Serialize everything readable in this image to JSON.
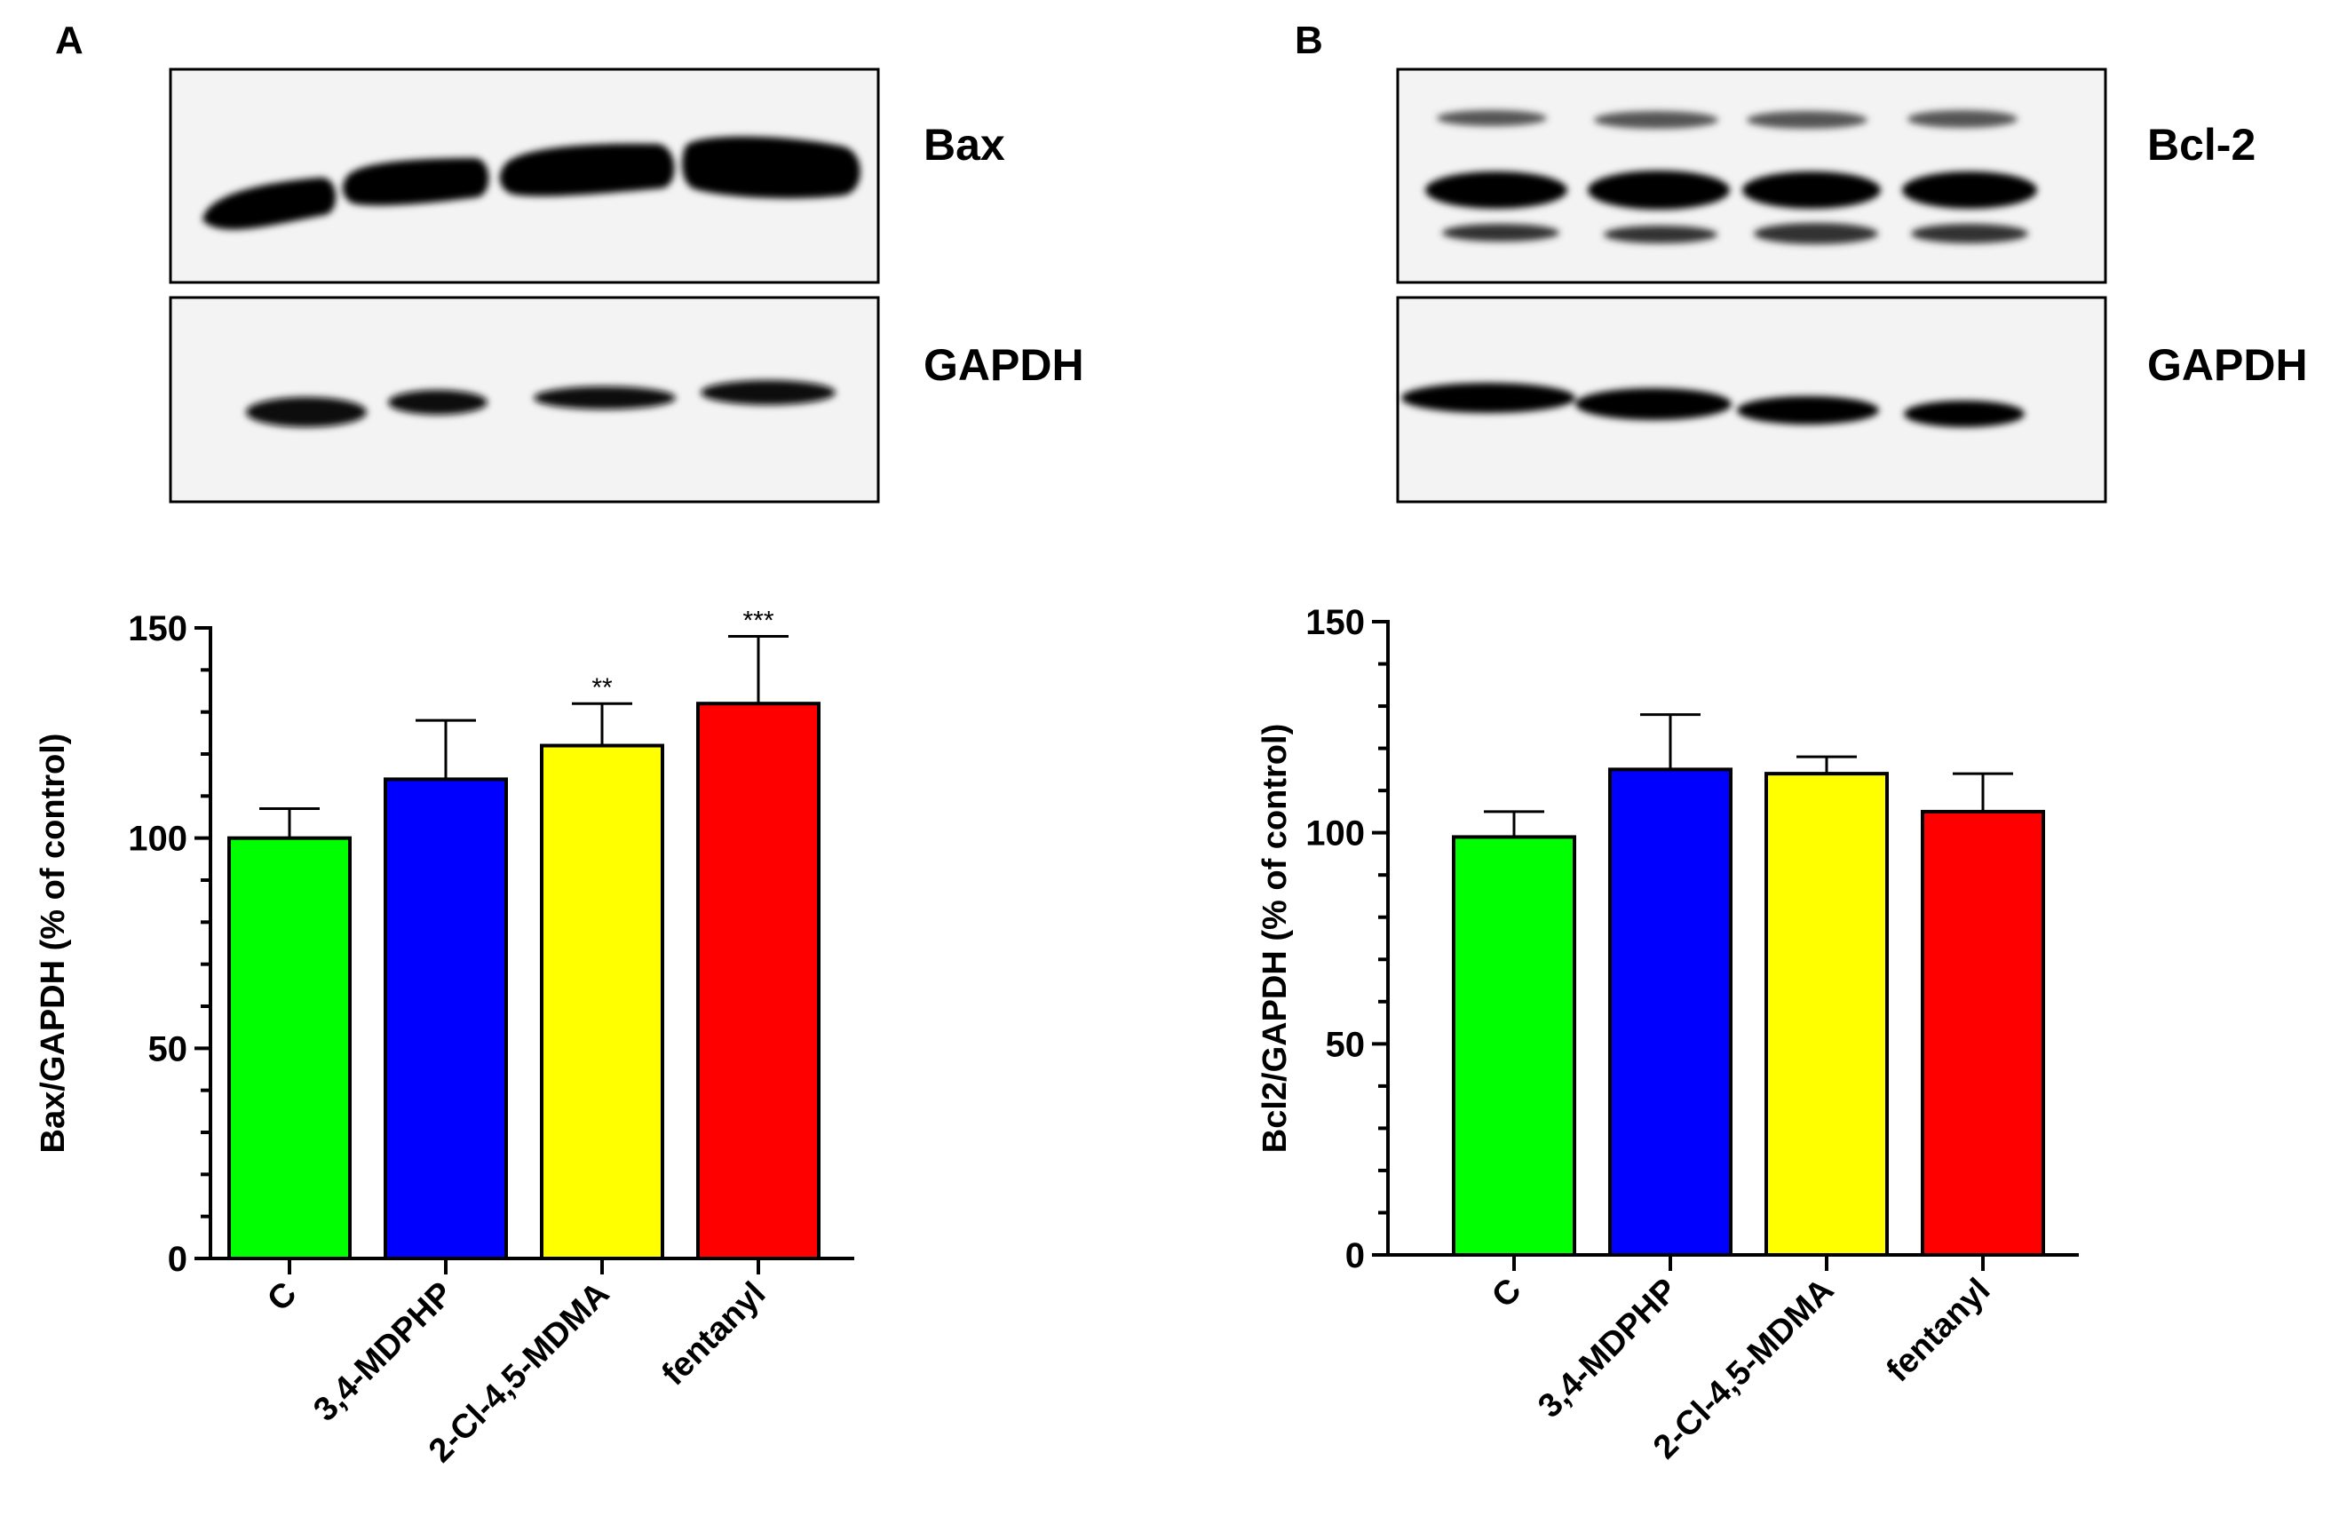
{
  "panels": [
    {
      "letter": "A",
      "blots": [
        {
          "label": "Bax",
          "bands": [
            {
              "intensity": 1.0
            }
          ]
        },
        {
          "label": "GAPDH",
          "bands": [
            {
              "intensity": 1.0
            }
          ]
        }
      ]
    },
    {
      "letter": "B",
      "blots": [
        {
          "label": "Bcl-2",
          "bands": [
            {
              "intensity": 0.35
            },
            {
              "intensity": 1.0
            },
            {
              "intensity": 0.45
            }
          ]
        },
        {
          "label": "GAPDH",
          "bands": [
            {
              "intensity": 1.0
            }
          ]
        }
      ]
    }
  ],
  "chart_data": [
    {
      "type": "bar",
      "categories": [
        "C",
        "3,4-MDPHP",
        "2-Cl-4,5-MDMA",
        "fentanyl"
      ],
      "values": [
        100,
        114,
        122,
        132
      ],
      "errors": [
        7,
        14,
        10,
        16
      ],
      "significance": [
        "",
        "",
        "**",
        "***"
      ],
      "colors": [
        "#00ff00",
        "#0000ff",
        "#ffff00",
        "#ff0000"
      ],
      "ylabel": "Bax/GAPDH (% of control)",
      "ylim": [
        0,
        150
      ],
      "yticks": [
        0,
        50,
        100,
        150
      ],
      "grid": false
    },
    {
      "type": "bar",
      "categories": [
        "C",
        "3,4-MDPHP",
        "2-Cl-4,5-MDMA",
        "fentanyl"
      ],
      "values": [
        99,
        115,
        114,
        105
      ],
      "errors": [
        6,
        13,
        4,
        9
      ],
      "significance": [
        "",
        "",
        "",
        ""
      ],
      "colors": [
        "#00ff00",
        "#0000ff",
        "#ffff00",
        "#ff0000"
      ],
      "ylabel": "Bcl2/GAPDH (% of control)",
      "ylim": [
        0,
        150
      ],
      "yticks": [
        0,
        50,
        100,
        150
      ],
      "grid": false
    }
  ]
}
